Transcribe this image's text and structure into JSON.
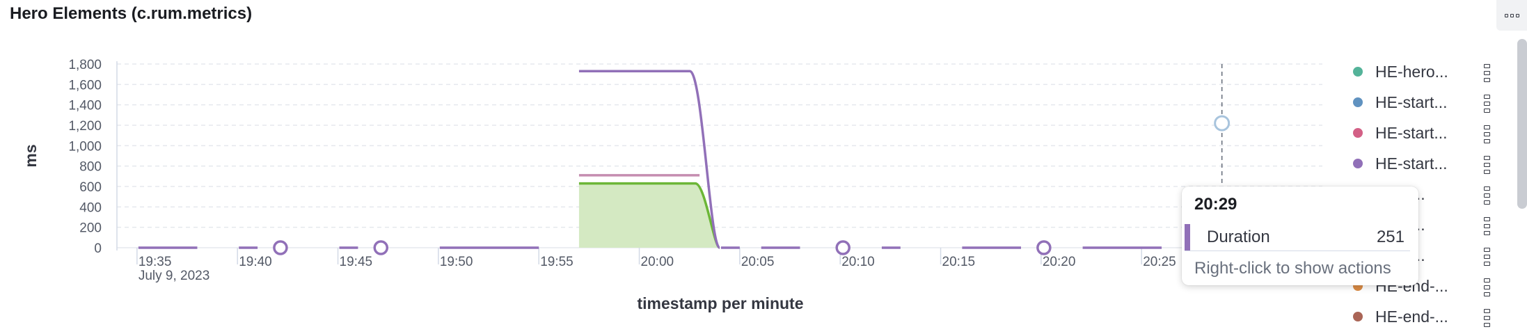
{
  "panel": {
    "title": "Hero Elements (c.rum.metrics)"
  },
  "colors": {
    "green": "#54b399",
    "blue": "#6092c0",
    "pink": "#d36086",
    "purple": "#9170b8",
    "orange": "#ca8eae",
    "brown": "#d6bf57",
    "lime": "#6cb637",
    "lavender": "#c58db0",
    "grid": "#e5e8ed"
  },
  "chart_data": {
    "type": "line",
    "ylabel": "ms",
    "xlabel": "timestamp per minute",
    "x_date_label": "July 9, 2023",
    "ylim": [
      0,
      1800
    ],
    "y_ticks": [
      "0",
      "200",
      "400",
      "600",
      "800",
      "1,000",
      "1,200",
      "1,400",
      "1,600",
      "1,800"
    ],
    "x_ticks": [
      "19:35",
      "19:40",
      "19:45",
      "19:50",
      "19:55",
      "20:00",
      "20:05",
      "20:10",
      "20:15",
      "20:20",
      "20:25"
    ],
    "grid": "horizontal-dashed",
    "legend_position": "right",
    "series": [
      {
        "name": "HE-hero...",
        "color": "#54b399",
        "points": [
          [
            "20:29",
            0
          ]
        ]
      },
      {
        "name": "HE-start...",
        "color": "#6092c0",
        "points": [
          [
            "20:29",
            1220
          ]
        ]
      },
      {
        "name": "HE-start...",
        "color": "#d36086",
        "points": []
      },
      {
        "name": "HE-start...",
        "color": "#9170b8",
        "points": [
          [
            "19:35",
            0
          ],
          [
            "19:38",
            0
          ],
          [
            "19:40",
            0
          ],
          [
            "19:41",
            0
          ],
          [
            "19:43",
            0
          ],
          [
            "19:45",
            0
          ],
          [
            "19:46",
            0
          ],
          [
            "19:48",
            0
          ],
          [
            "19:50",
            0
          ],
          [
            "19:55",
            0
          ],
          [
            "19:57",
            1730
          ],
          [
            "20:03",
            1730
          ],
          [
            "20:04",
            0
          ],
          [
            "20:10",
            0
          ],
          [
            "20:15",
            0
          ],
          [
            "20:20",
            0
          ],
          [
            "20:29",
            251
          ]
        ]
      },
      {
        "name": "...op-...",
        "color": "#ca8eae",
        "points": [
          [
            "19:57",
            710
          ],
          [
            "20:03",
            710
          ]
        ]
      },
      {
        "name": "...nd-...",
        "color": "#6cb637",
        "points": [
          [
            "19:57",
            630
          ],
          [
            "20:03",
            630
          ],
          [
            "20:04",
            0
          ],
          [
            "20:29",
            0
          ]
        ]
      },
      {
        "name": "...nd-...",
        "color": "#9170b8",
        "points": []
      },
      {
        "name": "HE-end-...",
        "color": "#d6bf57",
        "points": []
      },
      {
        "name": "HE-end-...",
        "color": "#da8b45",
        "points": []
      }
    ]
  },
  "legend": [
    {
      "label": "HE-hero...",
      "color": "#54b399"
    },
    {
      "label": "HE-start...",
      "color": "#6092c0"
    },
    {
      "label": "HE-start...",
      "color": "#d36086"
    },
    {
      "label": "HE-start...",
      "color": "#9170b8"
    },
    {
      "label": "...op-...",
      "color": "#ca8eae"
    },
    {
      "label": "...nd-...",
      "color": "#6cb637"
    },
    {
      "label": "...nd-...",
      "color": "#b9a888"
    },
    {
      "label": "HE-end-...",
      "color": "#da8b45"
    },
    {
      "label": "HE-end-...",
      "color": "#aa6556"
    }
  ],
  "tooltip": {
    "time": "20:29",
    "metric": "Duration",
    "value": "251",
    "hint": "Right-click to show actions",
    "color": "#9170b8"
  }
}
